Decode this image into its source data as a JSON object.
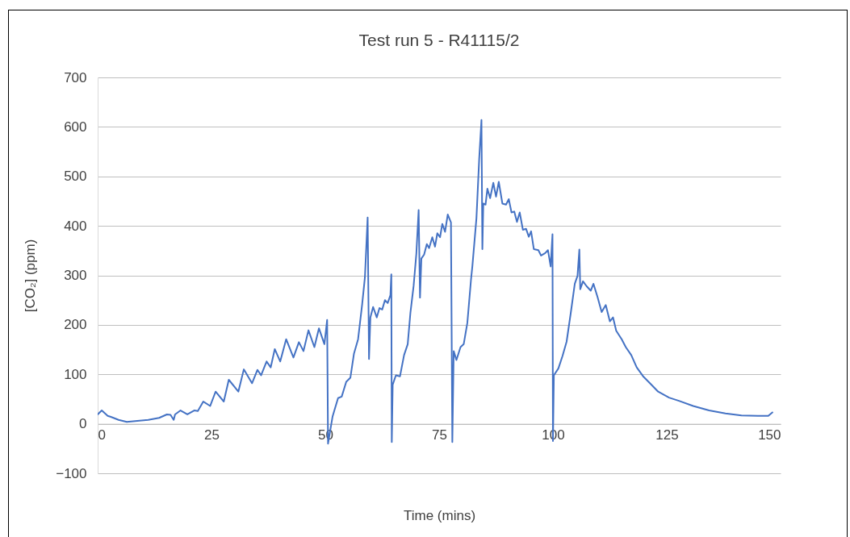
{
  "chart_data": {
    "type": "line",
    "title": "Test run 5 - R41115/2",
    "xlabel": "Time (mins)",
    "ylabel": "[CO₂] (ppm)",
    "xlim": [
      0,
      150
    ],
    "xticks": [
      0,
      25,
      50,
      75,
      100,
      125,
      150
    ],
    "ylim": [
      -100,
      700
    ],
    "yticks": [
      -100,
      0,
      100,
      200,
      300,
      400,
      500,
      600,
      700
    ],
    "grid": "y",
    "marker": "none",
    "line_style": "solid",
    "series": [
      {
        "color": "#4472c4",
        "x": [
          0,
          0.9,
          2.2,
          2.9,
          4.6,
          6.4,
          8.7,
          11.1,
          13.5,
          15.2,
          16.0,
          16.7,
          17,
          18.2,
          19.7,
          21.2,
          22,
          23.2,
          24.7,
          25.9,
          27.7,
          28.8,
          30.9,
          32.1,
          33.9,
          35.1,
          35.9,
          37.1,
          38,
          38.9,
          40.1,
          41.4,
          43,
          44.2,
          45.2,
          46.3,
          47.6,
          48.6,
          49.8,
          50.4,
          50.6,
          51.6,
          52.8,
          53.6,
          54.6,
          55.5,
          56.3,
          57.2,
          58.1,
          58.7,
          59.3,
          59.6,
          59.9,
          60.5,
          61.3,
          61.9,
          62.5,
          63.1,
          63.7,
          64.3,
          64.5,
          64.6,
          64.8,
          65.5,
          66.4,
          67.3,
          68.1,
          68.7,
          69.4,
          70,
          70.5,
          70.8,
          71.1,
          71.7,
          72.3,
          72.8,
          73.5,
          74.1,
          74.6,
          75.2,
          75.7,
          76.3,
          76.9,
          77.6,
          77.9,
          78.2,
          78.8,
          79.7,
          80.4,
          81.2,
          82.0,
          82.3,
          83.2,
          83.8,
          84.3,
          84.5,
          84.7,
          85.2,
          85.6,
          86.2,
          86.9,
          87.5,
          88.1,
          88.9,
          89.7,
          90.3,
          90.9,
          91.5,
          92.1,
          92.7,
          93.4,
          94.1,
          94.7,
          95.2,
          95.8,
          96.8,
          97.4,
          98.3,
          98.9,
          99.5,
          99.9,
          100.0,
          100.2,
          101.2,
          102.1,
          103.0,
          103.9,
          104.8,
          105.4,
          105.8,
          106.0,
          106.6,
          107.4,
          108.3,
          108.9,
          109.8,
          110.7,
          111.6,
          112.5,
          113.2,
          113.9,
          115.1,
          116.0,
          117.2,
          118.4,
          119.9,
          121.3,
          123.1,
          125.5,
          127.8,
          130.8,
          134.3,
          137.9,
          141.4,
          145.0,
          147.3,
          148.2
        ],
        "values": [
          19,
          27,
          16,
          14,
          8,
          4,
          6,
          8,
          12,
          19,
          18,
          8,
          19,
          27,
          19,
          27,
          26,
          45,
          36,
          65,
          45,
          89,
          65,
          110,
          82,
          109,
          98,
          126,
          114,
          151,
          126,
          171,
          134,
          165,
          147,
          189,
          155,
          193,
          161,
          210,
          -40,
          15,
          52,
          55,
          85,
          93,
          142,
          171,
          242,
          296,
          417,
          131,
          215,
          236,
          215,
          234,
          231,
          250,
          244,
          260,
          302,
          -37,
          79,
          98,
          96,
          139,
          161,
          225,
          279,
          344,
          432,
          255,
          334,
          342,
          363,
          355,
          377,
          358,
          385,
          377,
          404,
          388,
          423,
          407,
          -37,
          147,
          129,
          155,
          161,
          204,
          291,
          318,
          416,
          535,
          614,
          353,
          445,
          443,
          475,
          456,
          487,
          459,
          489,
          445,
          443,
          454,
          427,
          429,
          408,
          427,
          392,
          394,
          378,
          389,
          353,
          351,
          340,
          345,
          351,
          318,
          383,
          -35,
          98,
          112,
          137,
          166,
          223,
          283,
          299,
          352,
          272,
          288,
          278,
          269,
          283,
          256,
          226,
          240,
          207,
          215,
          188,
          171,
          155,
          139,
          114,
          95,
          82,
          65,
          53,
          46,
          36,
          27,
          21,
          17,
          16,
          16,
          23
        ]
      }
    ]
  }
}
